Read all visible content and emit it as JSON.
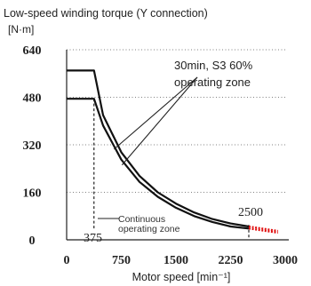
{
  "chart_data": {
    "type": "line",
    "title": "Low-speed winding torque (Y connection)",
    "ylabel": "[N·m]",
    "xlabel": "Motor speed [min⁻¹]",
    "xlim": [
      0,
      3000
    ],
    "ylim": [
      0,
      640
    ],
    "xticks": [
      0,
      750,
      1500,
      2250,
      3000
    ],
    "yticks": [
      0,
      160,
      320,
      480,
      640
    ],
    "grid": "dotted-horizontal",
    "series": [
      {
        "name": "30min, S3 60% operating zone",
        "color": "#111111",
        "points": [
          [
            0,
            570
          ],
          [
            375,
            570
          ],
          [
            500,
            420
          ],
          [
            750,
            295
          ],
          [
            1000,
            215
          ],
          [
            1250,
            160
          ],
          [
            1500,
            122
          ],
          [
            1750,
            92
          ],
          [
            2000,
            70
          ],
          [
            2250,
            55
          ],
          [
            2500,
            45
          ]
        ]
      },
      {
        "name": "Continuous operating zone",
        "color": "#111111",
        "points": [
          [
            0,
            475
          ],
          [
            375,
            475
          ],
          [
            500,
            385
          ],
          [
            750,
            270
          ],
          [
            1000,
            195
          ],
          [
            1250,
            145
          ],
          [
            1500,
            108
          ],
          [
            1750,
            80
          ],
          [
            2000,
            60
          ],
          [
            2250,
            45
          ],
          [
            2500,
            38
          ]
        ]
      },
      {
        "name": "",
        "color": "#e01010",
        "style": "dotted",
        "points": [
          [
            2500,
            45
          ],
          [
            2900,
            30
          ]
        ]
      },
      {
        "name": "",
        "color": "#e01010",
        "style": "dotted",
        "points": [
          [
            2500,
            38
          ],
          [
            2900,
            24
          ]
        ]
      }
    ],
    "annotations": [
      {
        "text": "30min, S3 60%",
        "line2": "operating zone"
      },
      {
        "text": "Continuous",
        "line2": "operating zone"
      },
      {
        "text": "375",
        "x": 375
      },
      {
        "text": "2500",
        "x": 2500
      }
    ]
  }
}
